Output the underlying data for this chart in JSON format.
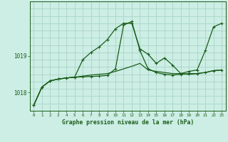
{
  "title": "Graphe pression niveau de la mer (hPa)",
  "background_color": "#cceee4",
  "grid_color": "#aad4c8",
  "line_color": "#1a5c1a",
  "x_ticks": [
    0,
    1,
    2,
    3,
    4,
    5,
    6,
    7,
    8,
    9,
    10,
    11,
    12,
    13,
    14,
    15,
    16,
    17,
    18,
    19,
    20,
    21,
    22,
    23
  ],
  "y_ticks": [
    1018,
    1019
  ],
  "ylim": [
    1017.5,
    1020.5
  ],
  "xlim": [
    -0.5,
    23.5
  ],
  "series1": [
    1017.65,
    1018.15,
    1018.32,
    1018.37,
    1018.4,
    1018.42,
    1018.43,
    1018.44,
    1018.45,
    1018.47,
    1018.65,
    1019.85,
    1019.95,
    1019.15,
    1018.65,
    1018.55,
    1018.5,
    1018.48,
    1018.5,
    1018.52,
    1018.52,
    1018.55,
    1018.6,
    1018.62
  ],
  "series2": [
    1017.65,
    1018.15,
    1018.32,
    1018.37,
    1018.4,
    1018.42,
    1018.9,
    1019.1,
    1019.25,
    1019.45,
    1019.75,
    1019.9,
    1019.9,
    1019.2,
    1019.05,
    1018.8,
    1018.95,
    1018.75,
    1018.52,
    1018.58,
    1018.62,
    1019.15,
    1019.8,
    1019.9
  ],
  "series3": [
    1017.65,
    1018.15,
    1018.32,
    1018.37,
    1018.4,
    1018.42,
    1018.45,
    1018.48,
    1018.5,
    1018.52,
    1018.58,
    1018.65,
    1018.72,
    1018.8,
    1018.62,
    1018.58,
    1018.55,
    1018.52,
    1018.52,
    1018.5,
    1018.52,
    1018.55,
    1018.6,
    1018.62
  ]
}
